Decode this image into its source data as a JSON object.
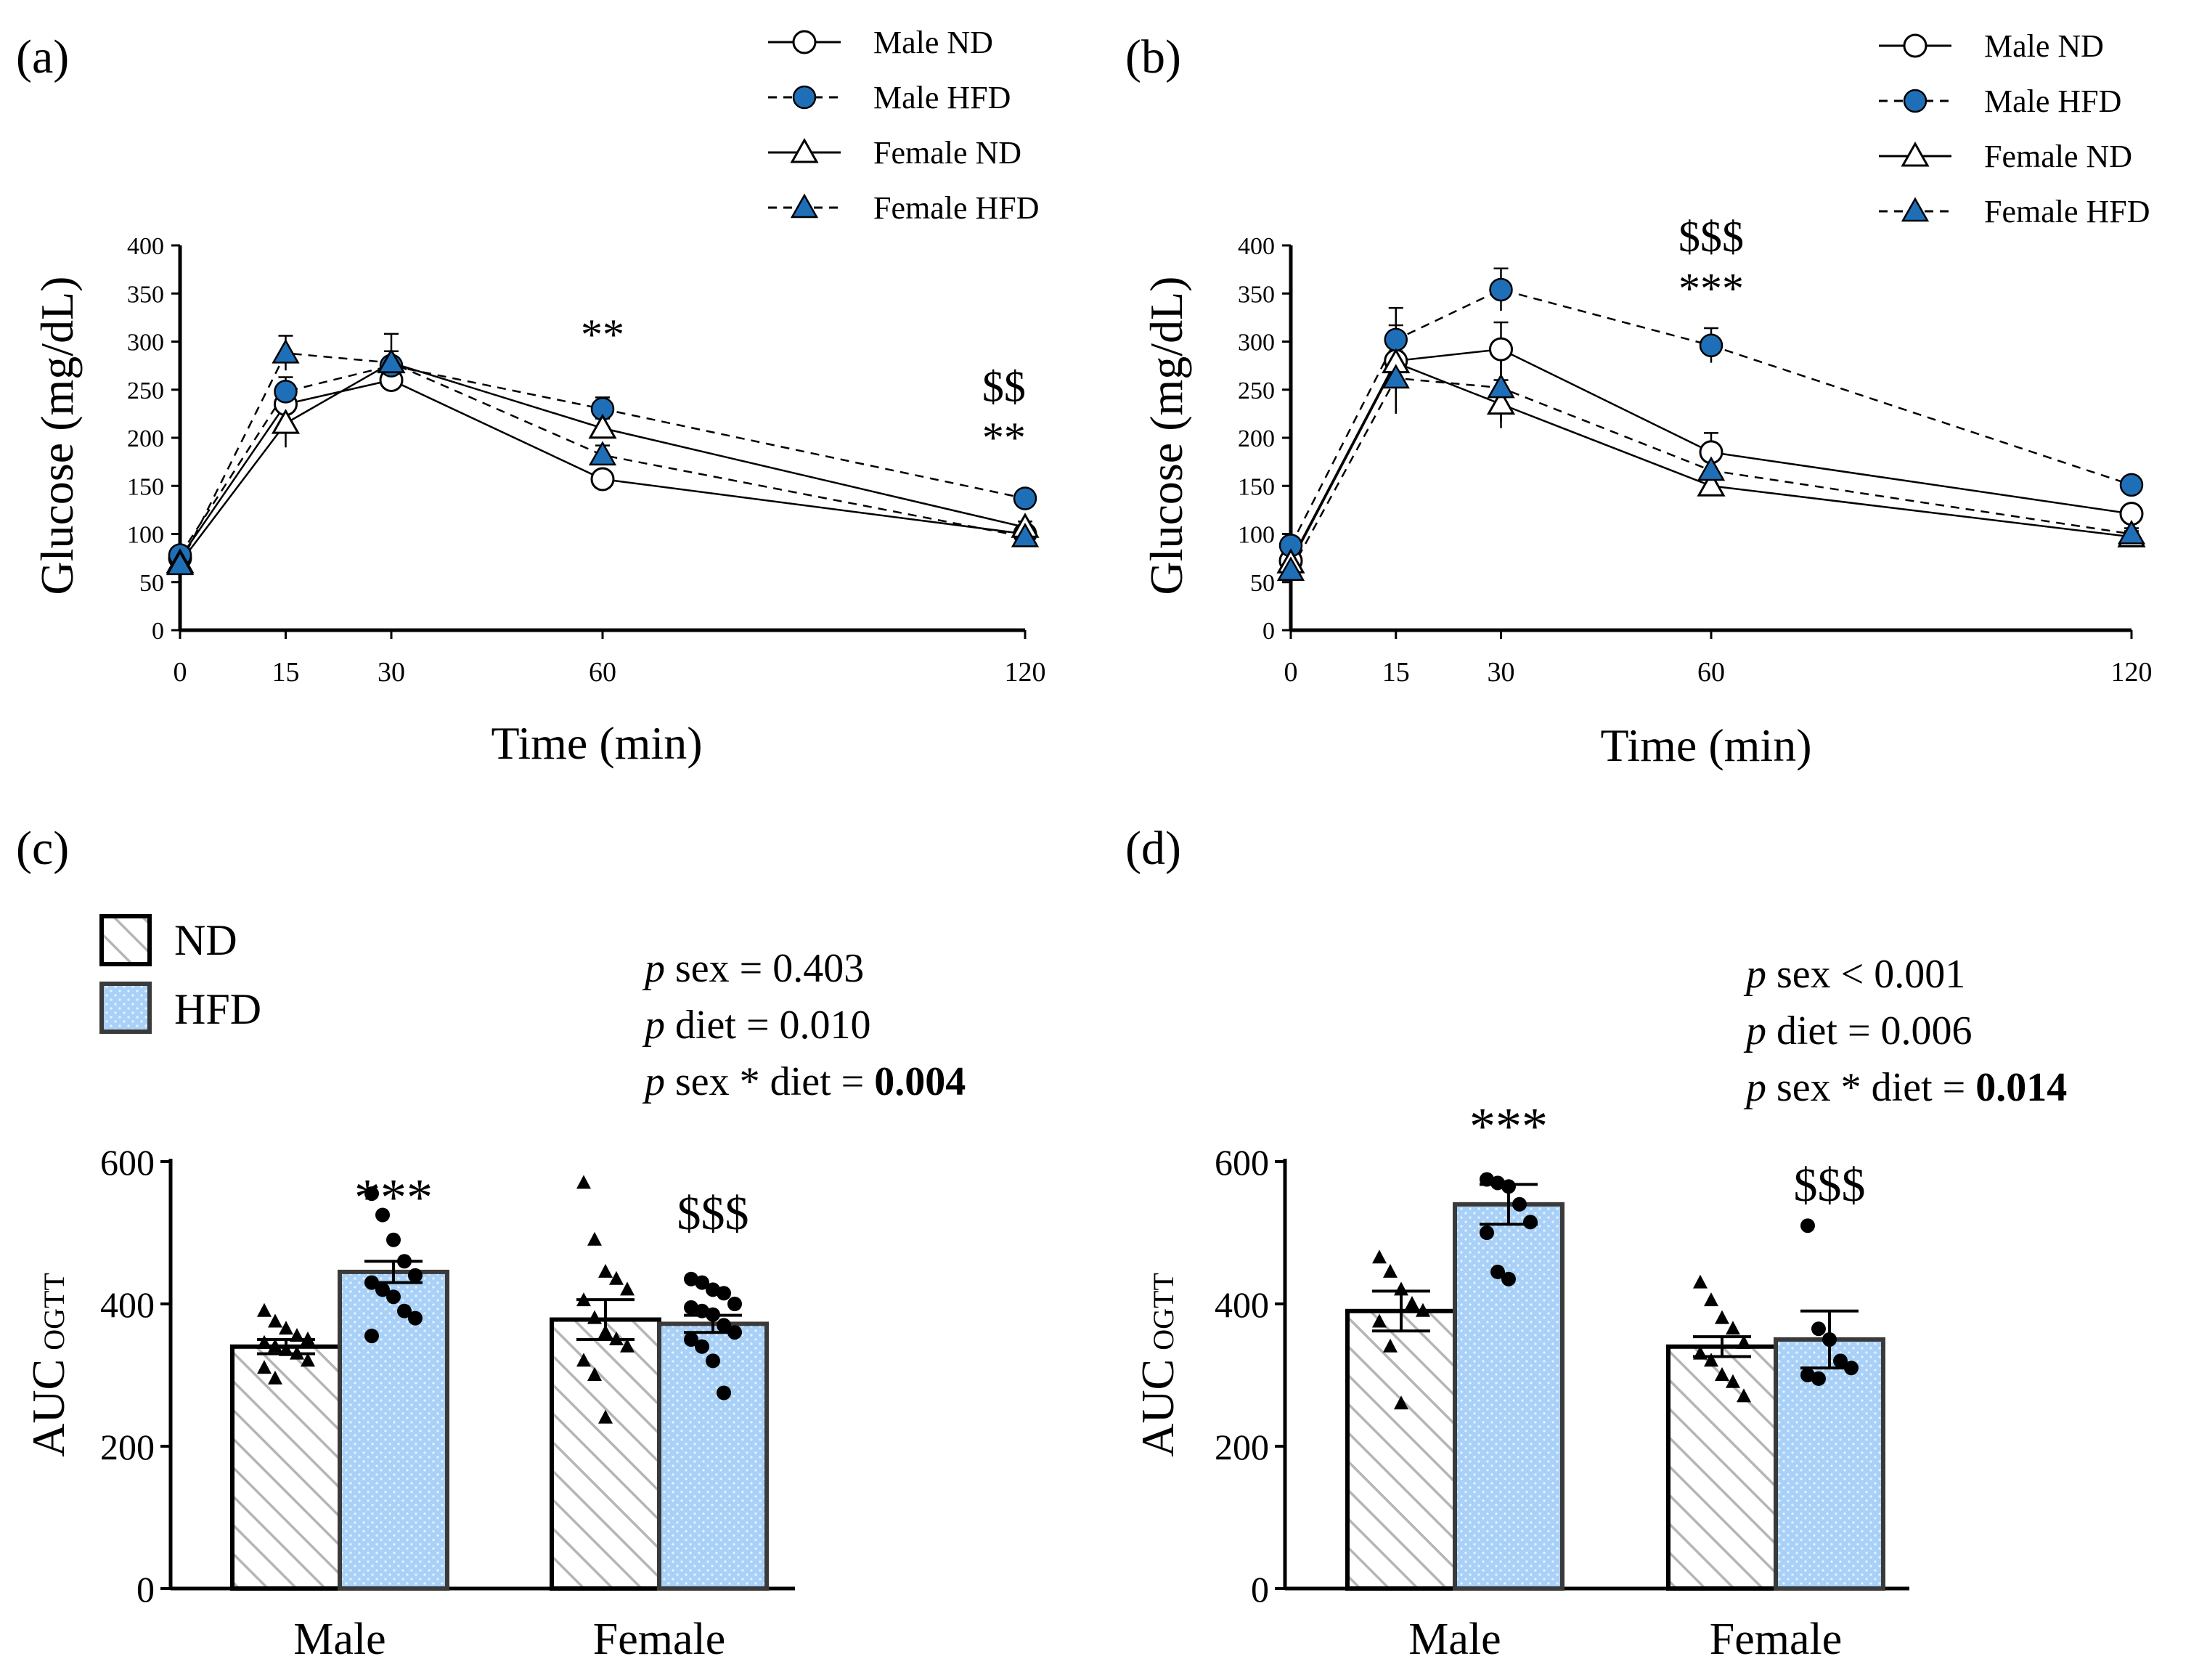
{
  "colors": {
    "hfd": "#1f6fb8",
    "hfd_bar": "#a9d1f7",
    "nd_bar": "#ffffff",
    "hatch": "#b5b5b5",
    "axis": "#000000"
  },
  "legend_top": [
    "Male ND",
    "Male HFD",
    "Female ND",
    "Female HFD"
  ],
  "legend_bottom": [
    "ND",
    "HFD"
  ],
  "chart_data": [
    {
      "panel": "(a)",
      "type": "line",
      "xlabel": "Time (min)",
      "ylabel": "Glucose (mg/dL)",
      "x": [
        0,
        15,
        30,
        60,
        120
      ],
      "xlim": [
        0,
        120
      ],
      "ylim": [
        0,
        400
      ],
      "xticks": [
        0,
        15,
        30,
        60,
        120
      ],
      "yticks": [
        0,
        50,
        100,
        150,
        200,
        250,
        300,
        350,
        400
      ],
      "series": [
        {
          "name": "Male ND",
          "values": [
            75,
            235,
            260,
            157,
            100
          ],
          "err": [
            5,
            18,
            12,
            8,
            5
          ]
        },
        {
          "name": "Male HFD",
          "values": [
            78,
            248,
            275,
            230,
            137
          ],
          "err": [
            5,
            15,
            15,
            12,
            6
          ]
        },
        {
          "name": "Female ND",
          "values": [
            70,
            215,
            278,
            210,
            107
          ],
          "err": [
            5,
            25,
            30,
            10,
            6
          ]
        },
        {
          "name": "Female HFD",
          "values": [
            68,
            288,
            278,
            182,
            97
          ],
          "err": [
            5,
            18,
            12,
            10,
            5
          ]
        }
      ],
      "annotations": [
        {
          "text": "**",
          "x": 60,
          "y": 292
        },
        {
          "text": "$$",
          "x": 117,
          "y": 238
        },
        {
          "text": "**",
          "x": 117,
          "y": 185
        }
      ]
    },
    {
      "panel": "(b)",
      "type": "line",
      "xlabel": "Time (min)",
      "ylabel": "Glucose (mg/dL)",
      "x": [
        0,
        15,
        30,
        60,
        120
      ],
      "xlim": [
        0,
        120
      ],
      "ylim": [
        0,
        400
      ],
      "xticks": [
        0,
        15,
        30,
        60,
        120
      ],
      "yticks": [
        0,
        50,
        100,
        150,
        200,
        250,
        300,
        350,
        400
      ],
      "series": [
        {
          "name": "Male ND",
          "values": [
            72,
            280,
            292,
            185,
            121
          ],
          "err": [
            5,
            55,
            28,
            20,
            8
          ]
        },
        {
          "name": "Male HFD",
          "values": [
            88,
            302,
            354,
            296,
            151
          ],
          "err": [
            5,
            15,
            22,
            18,
            8
          ]
        },
        {
          "name": "Female ND",
          "values": [
            70,
            278,
            235,
            150,
            97
          ],
          "err": [
            5,
            12,
            25,
            10,
            6
          ]
        },
        {
          "name": "Female HFD",
          "values": [
            62,
            262,
            252,
            166,
            100
          ],
          "err": [
            5,
            20,
            35,
            12,
            6
          ]
        }
      ],
      "annotations": [
        {
          "text": "$$$",
          "x": 60,
          "y": 394
        },
        {
          "text": "***",
          "x": 60,
          "y": 340
        }
      ]
    },
    {
      "panel": "(c)",
      "type": "bar",
      "ylabel_main": "AUC",
      "ylabel_sub": "OGTT",
      "categories": [
        "Male",
        "Female"
      ],
      "ylim": [
        0,
        600
      ],
      "yticks": [
        0,
        200,
        400,
        600
      ],
      "series": [
        {
          "name": "ND",
          "values": [
            340,
            378
          ],
          "err": [
            10,
            28
          ]
        },
        {
          "name": "HFD",
          "values": [
            445,
            372
          ],
          "err": [
            15,
            12
          ]
        }
      ],
      "points": {
        "Male-ND": [
          390,
          375,
          365,
          355,
          350,
          345,
          340,
          335,
          330,
          320,
          310,
          295
        ],
        "Male-HFD": [
          555,
          525,
          490,
          460,
          440,
          430,
          420,
          410,
          390,
          380,
          355
        ],
        "Female-ND": [
          570,
          490,
          445,
          435,
          420,
          405,
          380,
          360,
          350,
          340,
          320,
          300,
          240
        ],
        "Female-HFD": [
          435,
          430,
          420,
          415,
          400,
          395,
          390,
          385,
          370,
          360,
          350,
          340,
          320,
          275
        ]
      },
      "stats": [
        {
          "label": "sex = 0.403",
          "bold": ""
        },
        {
          "label": "diet = 0.010",
          "bold": ""
        },
        {
          "label": "sex * diet = ",
          "bold": "0.004"
        }
      ],
      "annotations": [
        {
          "text": "***",
          "group": "Male-HFD",
          "y": 525
        },
        {
          "text": "$$$",
          "group": "Female-HFD",
          "y": 505
        }
      ]
    },
    {
      "panel": "(d)",
      "type": "bar",
      "ylabel_main": "AUC",
      "ylabel_sub": "OGTT",
      "categories": [
        "Male",
        "Female"
      ],
      "ylim": [
        0,
        600
      ],
      "yticks": [
        0,
        200,
        400,
        600
      ],
      "series": [
        {
          "name": "ND",
          "values": [
            390,
            340
          ],
          "err": [
            28,
            14
          ]
        },
        {
          "name": "HFD",
          "values": [
            540,
            350
          ],
          "err": [
            28,
            40
          ]
        }
      ],
      "points": {
        "Male-ND": [
          465,
          445,
          420,
          400,
          390,
          375,
          340,
          260
        ],
        "Male-HFD": [
          575,
          570,
          565,
          540,
          515,
          500,
          445,
          435
        ],
        "Female-ND": [
          430,
          405,
          380,
          365,
          345,
          330,
          320,
          300,
          290,
          270
        ],
        "Female-HFD": [
          510,
          365,
          350,
          320,
          310,
          300,
          295
        ]
      },
      "stats": [
        {
          "label": "sex < 0.001",
          "bold": ""
        },
        {
          "label": "diet = 0.006",
          "bold": ""
        },
        {
          "label": "sex * diet = ",
          "bold": "0.014"
        }
      ],
      "annotations": [
        {
          "text": "***",
          "group": "Male-HFD",
          "y": 625
        },
        {
          "text": "$$$",
          "group": "Female-HFD",
          "y": 545
        }
      ]
    }
  ]
}
